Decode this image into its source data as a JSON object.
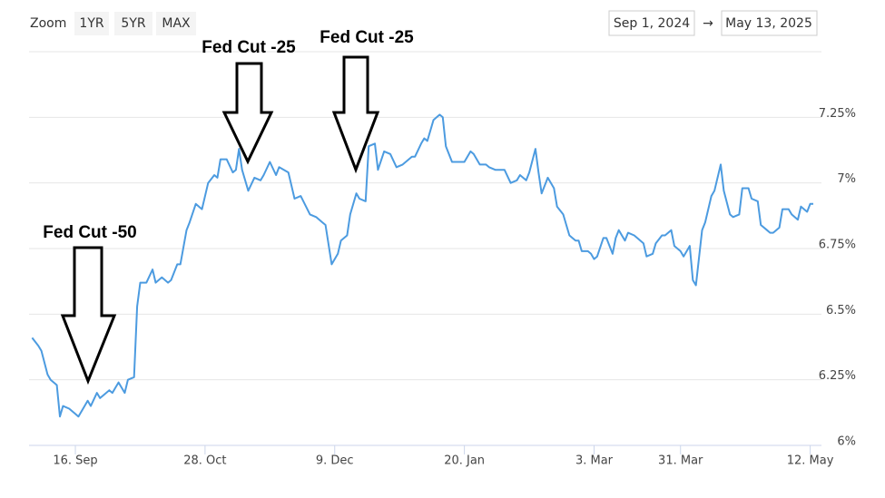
{
  "toolbar": {
    "zoom": "Zoom",
    "buttons": [
      "1YR",
      "5YR",
      "MAX"
    ],
    "range_from": "Sep 1, 2024",
    "range_sep": "→",
    "range_to": "May 13, 2025"
  },
  "chart_data": {
    "type": "line",
    "color": "#4c9be0",
    "grid": true,
    "annotations": [
      "Fed Cut -50",
      "Fed Cut -25",
      "Fed Cut -25"
    ],
    "xlim": [
      "2024-09-01",
      "2025-05-13"
    ],
    "xticks": [
      {
        "value": "2024-09-16",
        "label": "16. Sep"
      },
      {
        "value": "2024-10-28",
        "label": "28. Oct"
      },
      {
        "value": "2024-12-09",
        "label": "9. Dec"
      },
      {
        "value": "2025-01-20",
        "label": "20. Jan"
      },
      {
        "value": "2025-03-03",
        "label": "3. Mar"
      },
      {
        "value": "2025-03-31",
        "label": "31. Mar"
      },
      {
        "value": "2025-05-12",
        "label": "12. May"
      }
    ],
    "ylim": [
      6,
      7.5
    ],
    "yticks": [
      {
        "value": 6,
        "label": "6%"
      },
      {
        "value": 6.25,
        "label": "6.25%"
      },
      {
        "value": 6.5,
        "label": "6.5%"
      },
      {
        "value": 6.75,
        "label": "6.75%"
      },
      {
        "value": 7,
        "label": "7%"
      },
      {
        "value": 7.25,
        "label": "7.25%"
      }
    ],
    "x": [
      "2024-09-02",
      "2024-09-04",
      "2024-09-05",
      "2024-09-07",
      "2024-09-08",
      "2024-09-10",
      "2024-09-11",
      "2024-09-12",
      "2024-09-14",
      "2024-09-16",
      "2024-09-17",
      "2024-09-19",
      "2024-09-20",
      "2024-09-21",
      "2024-09-23",
      "2024-09-24",
      "2024-09-25",
      "2024-09-27",
      "2024-09-28",
      "2024-09-30",
      "2024-10-02",
      "2024-10-03",
      "2024-10-05",
      "2024-10-06",
      "2024-10-07",
      "2024-10-09",
      "2024-10-11",
      "2024-10-12",
      "2024-10-14",
      "2024-10-16",
      "2024-10-17",
      "2024-10-19",
      "2024-10-20",
      "2024-10-22",
      "2024-10-23",
      "2024-10-25",
      "2024-10-26",
      "2024-10-27",
      "2024-10-29",
      "2024-10-31",
      "2024-11-01",
      "2024-11-02",
      "2024-11-04",
      "2024-11-06",
      "2024-11-07",
      "2024-11-08",
      "2024-11-09",
      "2024-11-11",
      "2024-11-13",
      "2024-11-15",
      "2024-11-16",
      "2024-11-18",
      "2024-11-20",
      "2024-11-21",
      "2024-11-24",
      "2024-11-26",
      "2024-11-28",
      "2024-12-01",
      "2024-12-03",
      "2024-12-05",
      "2024-12-06",
      "2024-12-08",
      "2024-12-10",
      "2024-12-11",
      "2024-12-13",
      "2024-12-14",
      "2024-12-16",
      "2024-12-17",
      "2024-12-19",
      "2024-12-20",
      "2024-12-22",
      "2024-12-23",
      "2024-12-25",
      "2024-12-27",
      "2024-12-29",
      "2024-12-31",
      "2025-01-03",
      "2025-01-04",
      "2025-01-06",
      "2025-01-07",
      "2025-01-08",
      "2025-01-10",
      "2025-01-12",
      "2025-01-13",
      "2025-01-14",
      "2025-01-16",
      "2025-01-17",
      "2025-01-20",
      "2025-01-22",
      "2025-01-23",
      "2025-01-25",
      "2025-01-27",
      "2025-01-28",
      "2025-01-30",
      "2025-02-02",
      "2025-02-04",
      "2025-02-06",
      "2025-02-07",
      "2025-02-09",
      "2025-02-10",
      "2025-02-12",
      "2025-02-13",
      "2025-02-14",
      "2025-02-16",
      "2025-02-18",
      "2025-02-19",
      "2025-02-21",
      "2025-02-22",
      "2025-02-23",
      "2025-02-25",
      "2025-02-26",
      "2025-02-27",
      "2025-03-01",
      "2025-03-02",
      "2025-03-03",
      "2025-03-04",
      "2025-03-06",
      "2025-03-07",
      "2025-03-09",
      "2025-03-10",
      "2025-03-11",
      "2025-03-13",
      "2025-03-14",
      "2025-03-16",
      "2025-03-17",
      "2025-03-19",
      "2025-03-20",
      "2025-03-22",
      "2025-03-23",
      "2025-03-25",
      "2025-03-26",
      "2025-03-28",
      "2025-03-29",
      "2025-03-31",
      "2025-04-01",
      "2025-04-03",
      "2025-04-04",
      "2025-04-05",
      "2025-04-07",
      "2025-04-08",
      "2025-04-10",
      "2025-04-11",
      "2025-04-13",
      "2025-04-14",
      "2025-04-16",
      "2025-04-17",
      "2025-04-19",
      "2025-04-20",
      "2025-04-22",
      "2025-04-23",
      "2025-04-25",
      "2025-04-26",
      "2025-04-28",
      "2025-04-29",
      "2025-04-30",
      "2025-05-02",
      "2025-05-03",
      "2025-05-05",
      "2025-05-06",
      "2025-05-08",
      "2025-05-09",
      "2025-05-11",
      "2025-05-12",
      "2025-05-13"
    ],
    "values": [
      6.41,
      6.38,
      6.36,
      6.27,
      6.25,
      6.23,
      6.11,
      6.15,
      6.14,
      6.12,
      6.11,
      6.15,
      6.17,
      6.15,
      6.2,
      6.18,
      6.19,
      6.21,
      6.2,
      6.24,
      6.2,
      6.25,
      6.26,
      6.53,
      6.62,
      6.62,
      6.67,
      6.62,
      6.64,
      6.62,
      6.63,
      6.69,
      6.69,
      6.82,
      6.85,
      6.92,
      6.91,
      6.9,
      7.0,
      7.03,
      7.02,
      7.09,
      7.09,
      7.04,
      7.05,
      7.13,
      7.05,
      6.97,
      7.02,
      7.01,
      7.03,
      7.08,
      7.03,
      7.06,
      7.04,
      6.94,
      6.95,
      6.88,
      6.87,
      6.85,
      6.84,
      6.69,
      6.73,
      6.78,
      6.8,
      6.88,
      6.96,
      6.94,
      6.93,
      7.14,
      7.15,
      7.05,
      7.12,
      7.11,
      7.06,
      7.07,
      7.1,
      7.1,
      7.15,
      7.17,
      7.16,
      7.24,
      7.26,
      7.25,
      7.14,
      7.08,
      7.08,
      7.08,
      7.12,
      7.11,
      7.07,
      7.07,
      7.06,
      7.05,
      7.05,
      7.0,
      7.01,
      7.03,
      7.01,
      7.04,
      7.13,
      7.04,
      6.96,
      7.02,
      6.98,
      6.91,
      6.88,
      6.84,
      6.8,
      6.78,
      6.78,
      6.74,
      6.74,
      6.73,
      6.71,
      6.72,
      6.79,
      6.79,
      6.73,
      6.79,
      6.82,
      6.78,
      6.81,
      6.8,
      6.79,
      6.77,
      6.72,
      6.73,
      6.77,
      6.8,
      6.8,
      6.82,
      6.76,
      6.74,
      6.72,
      6.76,
      6.63,
      6.61,
      6.82,
      6.85,
      6.95,
      6.97,
      7.07,
      6.97,
      6.88,
      6.87,
      6.88,
      6.98,
      6.98,
      6.94,
      6.93,
      6.84,
      6.82,
      6.81,
      6.81,
      6.83,
      6.9,
      6.9,
      6.88,
      6.86,
      6.91,
      6.89,
      6.92,
      6.92
    ]
  }
}
